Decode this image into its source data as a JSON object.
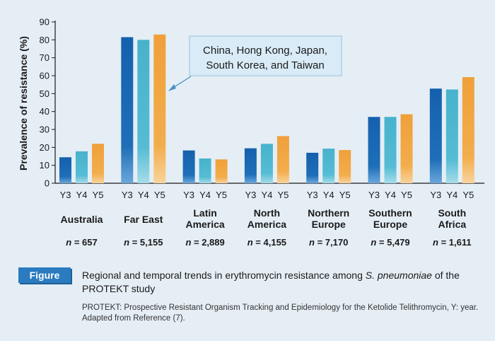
{
  "chart_data": {
    "type": "bar",
    "ylabel": "Prevalence of resistance (%)",
    "ylim": [
      0,
      90
    ],
    "yticks": [
      0,
      10,
      20,
      30,
      40,
      50,
      60,
      70,
      80,
      90
    ],
    "grid": false,
    "year_labels": [
      "Y3",
      "Y4",
      "Y5"
    ],
    "groups": [
      {
        "name": "Australia",
        "lines": [
          "Australia"
        ],
        "n_value": "657",
        "values": [
          14.5,
          17.8,
          22
        ]
      },
      {
        "name": "Far East",
        "lines": [
          "Far East"
        ],
        "n_value": "5,155",
        "values": [
          81.5,
          80,
          83
        ]
      },
      {
        "name": "Latin America",
        "lines": [
          "Latin",
          "America"
        ],
        "n_value": "2,889",
        "values": [
          18.3,
          13.8,
          13.3
        ]
      },
      {
        "name": "North America",
        "lines": [
          "North",
          "America"
        ],
        "n_value": "4,155",
        "values": [
          19.5,
          22,
          26.3
        ]
      },
      {
        "name": "Northern Europe",
        "lines": [
          "Northern",
          "Europe"
        ],
        "n_value": "7,170",
        "values": [
          17,
          19.3,
          18.5
        ]
      },
      {
        "name": "Southern Europe",
        "lines": [
          "Southern",
          "Europe"
        ],
        "n_value": "5,479",
        "values": [
          37,
          37,
          38.5
        ]
      },
      {
        "name": "South Africa",
        "lines": [
          "South",
          "Africa"
        ],
        "n_value": "1,611",
        "values": [
          52.8,
          52.3,
          59.2
        ]
      }
    ],
    "n_prefix": "n",
    "n_separator": " = ",
    "callout": {
      "lines": [
        "China, Hong Kong, Japan,",
        "South Korea, and Taiwan"
      ]
    }
  },
  "colors": {
    "y3": "#1f6fb8",
    "y4": "#55bcd4",
    "y5": "#f0a63c",
    "badge": "#2a7bbf",
    "background": "#e5eef5"
  },
  "figure_caption": {
    "badge_label": "Figure",
    "text_before": "Regional and temporal trends in erythromycin resistance among ",
    "species": "S. pneumoniae",
    "text_after": " of the PROTEKT study",
    "note": "PROTEKT: Prospective Resistant Organism Tracking and Epidemiology for the Ketolide Telithromycin, Y: year. Adapted from Reference (7)."
  }
}
